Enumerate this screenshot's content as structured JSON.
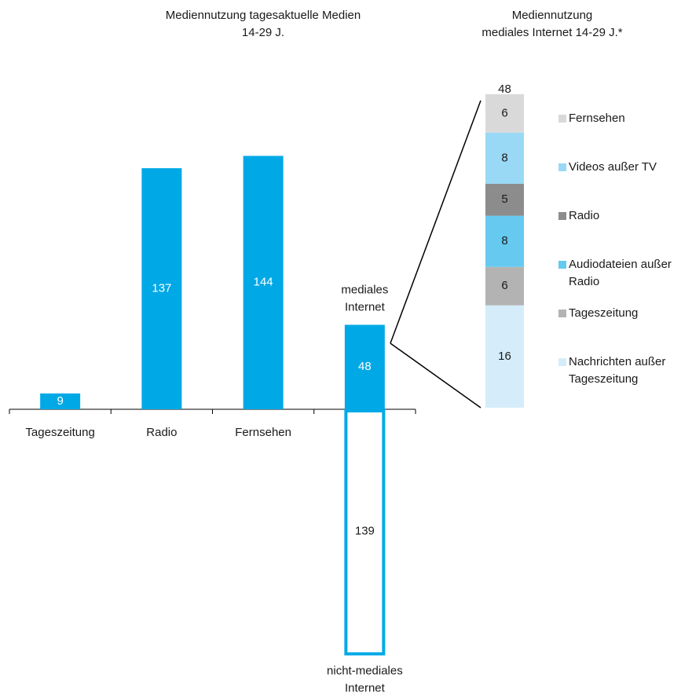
{
  "chart_data": [
    {
      "type": "bar",
      "title": [
        "Mediennutzung tagesaktuelle Medien",
        "14-29 J."
      ],
      "categories": [
        "Tageszeitung",
        "Radio",
        "Fernsehen",
        null
      ],
      "values": [
        9,
        137,
        144,
        48
      ],
      "color": "#00a9e6",
      "ylim": [
        -150,
        150
      ],
      "bar_annotation": [
        "mediales",
        "Internet"
      ],
      "negative_bar": {
        "value": -139,
        "value_label": "139",
        "label": [
          "nicht-mediales",
          "Internet"
        ],
        "color": "#00a9e6"
      }
    },
    {
      "type": "stacked_bar",
      "title": [
        "Mediennutzung",
        "mediales Internet 14-29 J.*"
      ],
      "total": 48,
      "ylim": [
        0,
        48
      ],
      "series": [
        {
          "name": "Nachrichten außer Tageszeitung",
          "color": "#d5edfa",
          "values": [
            16
          ]
        },
        {
          "name": "Tageszeitung",
          "color": "#b3b3b3",
          "values": [
            6
          ]
        },
        {
          "name": "Audiodateien außer Radio",
          "color": "#66c9f0",
          "values": [
            8
          ]
        },
        {
          "name": "Radio",
          "color": "#8c8c8c",
          "values": [
            5
          ]
        },
        {
          "name": "Videos außer TV",
          "color": "#99d9f5",
          "values": [
            8
          ]
        },
        {
          "name": "Fernsehen",
          "color": "#d9d9d9",
          "values": [
            6
          ]
        }
      ]
    }
  ]
}
